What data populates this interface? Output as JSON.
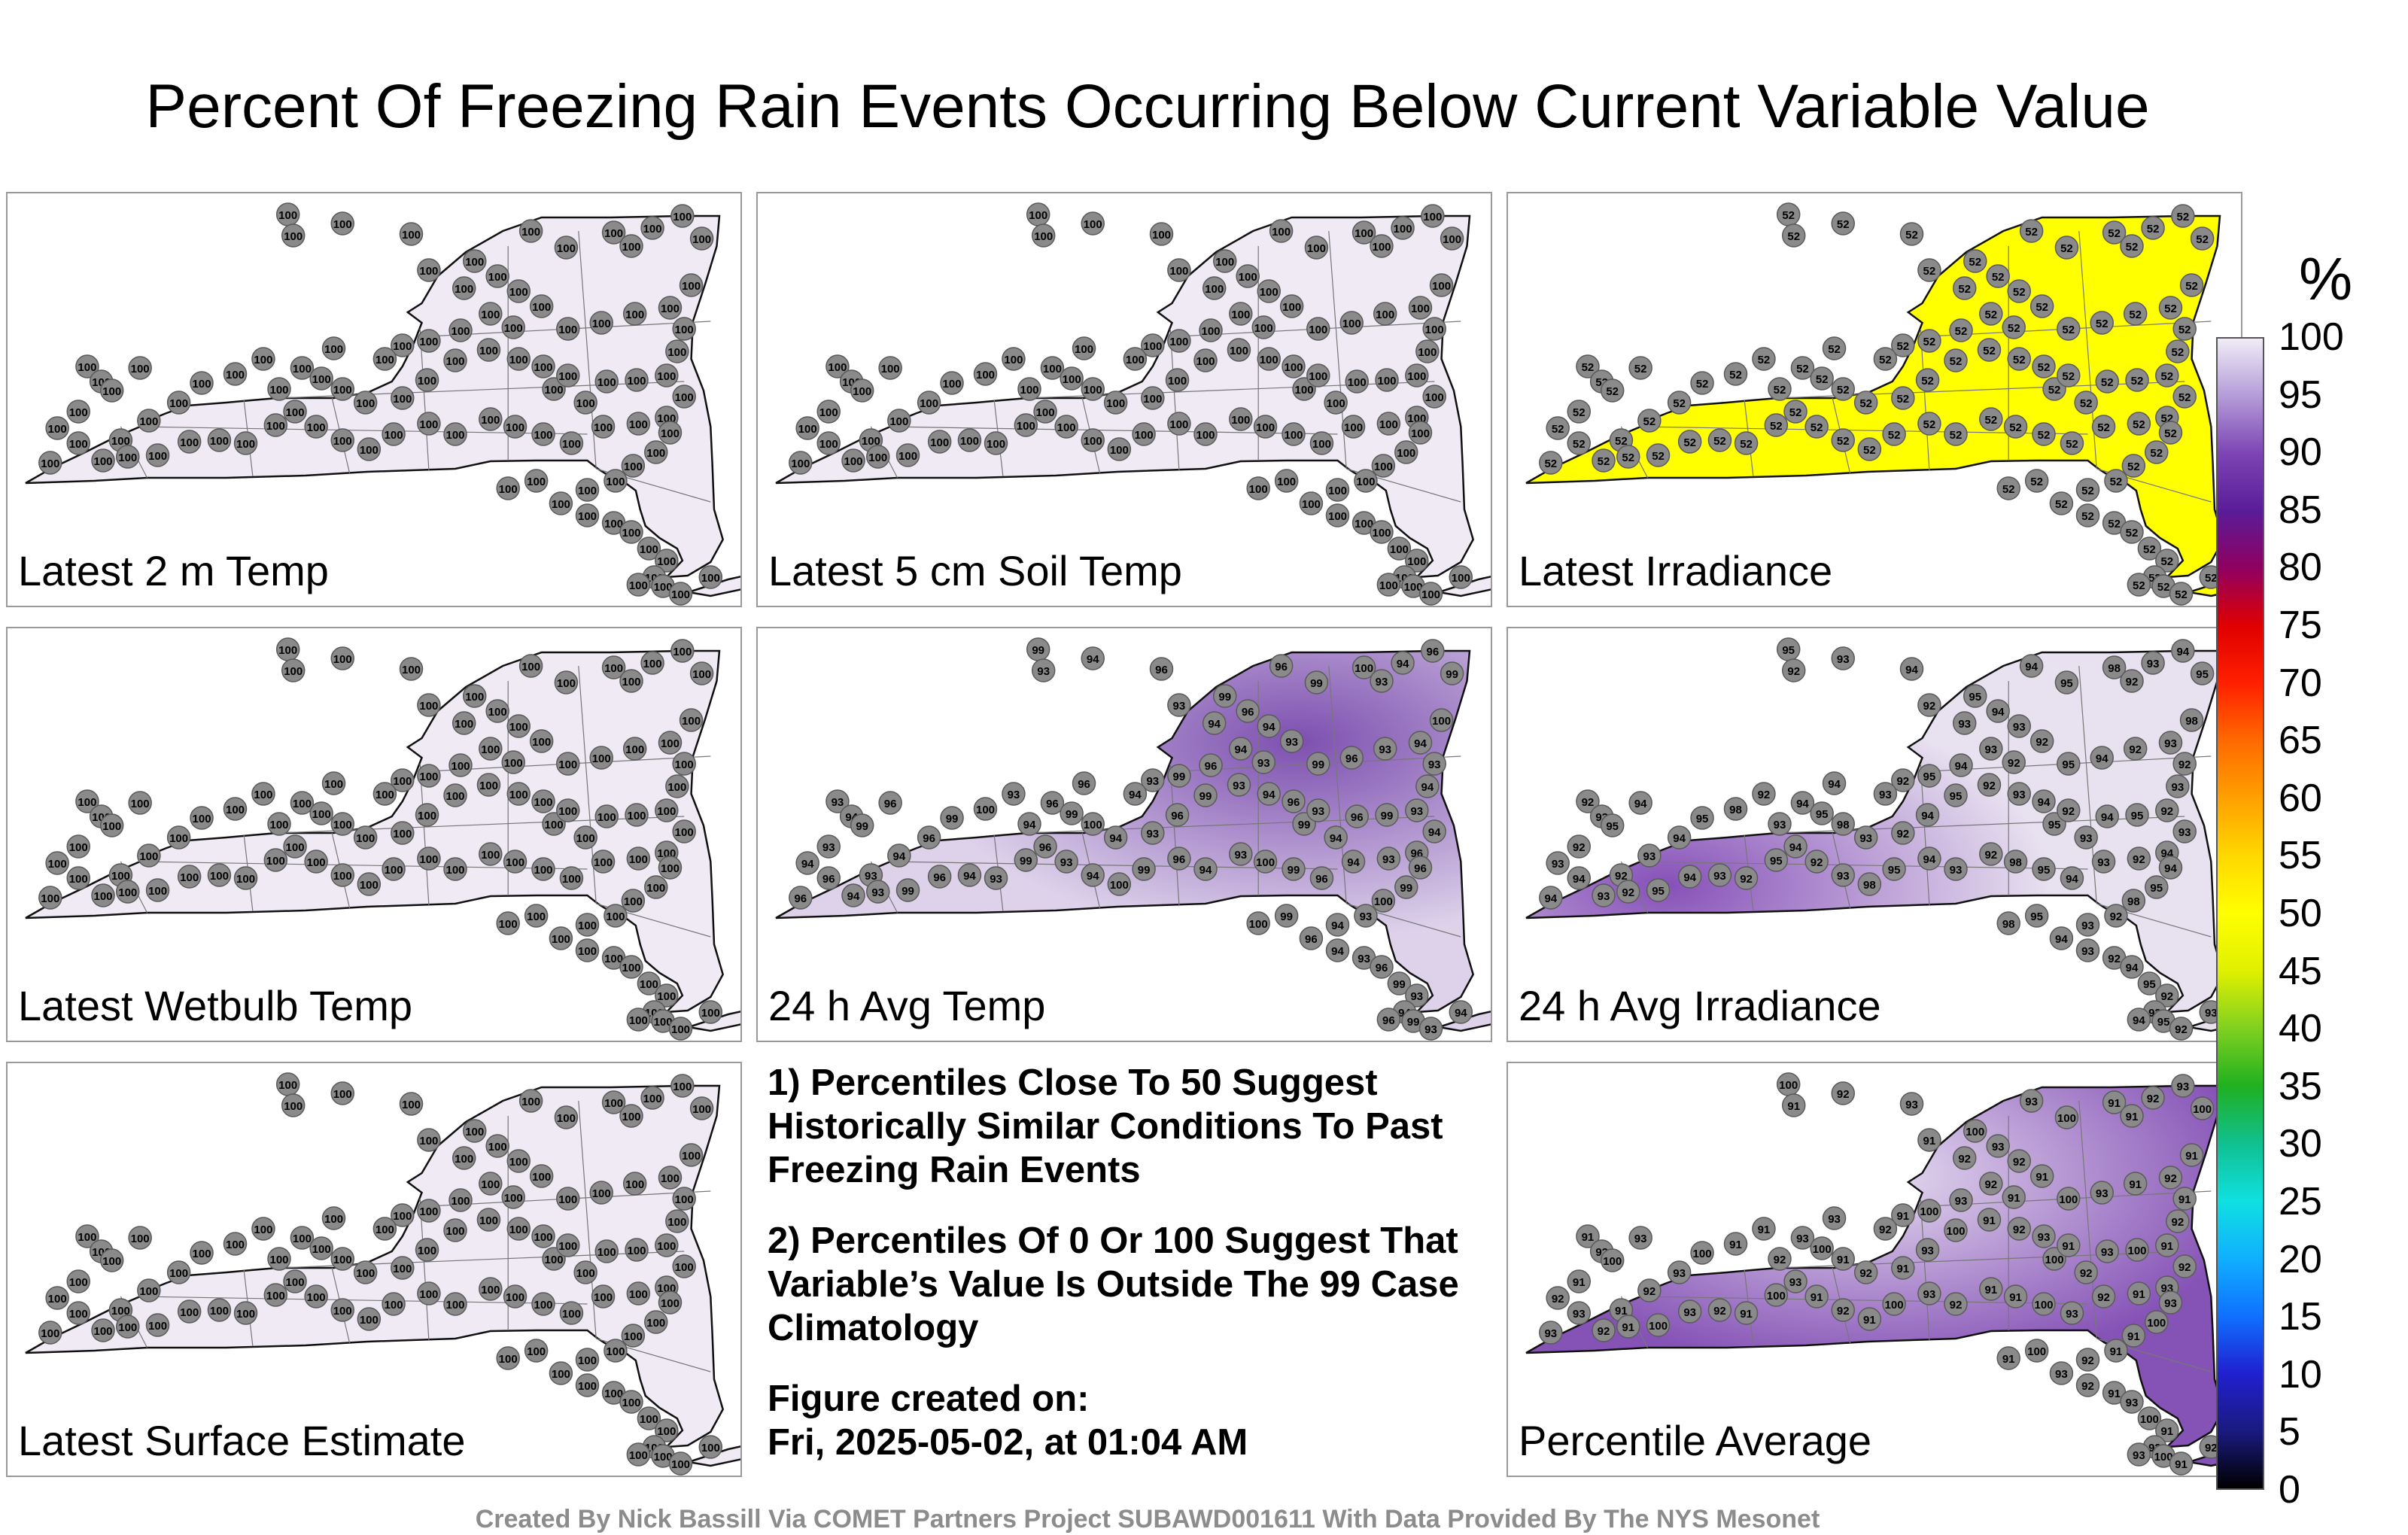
{
  "title": "Percent Of Freezing Rain Events Occurring Below Current Variable Value",
  "panels": [
    {
      "label": "Latest 2 m Temp",
      "fill": "#efeaf4",
      "station_values": [
        "100"
      ]
    },
    {
      "label": "Latest 5 cm Soil Temp",
      "fill": "#efeaf4",
      "station_values": [
        "100"
      ]
    },
    {
      "label": "Latest Irradiance",
      "fill": "#ffff00",
      "station_values": [
        "52"
      ]
    },
    {
      "label": "Latest Wetbulb Temp",
      "fill": "#efeaf4",
      "station_values": [
        "100"
      ]
    },
    {
      "label": "24 h Avg Temp",
      "fill": "#ddd2ea",
      "shade": "#7d4fb0",
      "station_values": [
        "93",
        "94",
        "96",
        "99",
        "100"
      ]
    },
    {
      "label": "24 h Avg Irradiance",
      "fill": "#e8e1f0",
      "shade": "#8650b8",
      "station_values": [
        "92",
        "93",
        "94",
        "95",
        "98",
        "100"
      ]
    },
    {
      "label": "Latest Surface Estimate",
      "fill": "#efeaf4",
      "station_values": [
        "100"
      ]
    },
    {
      "label": "Percentile Average",
      "fill": "#8552b6",
      "shade": "#e6dcf0",
      "station_values": [
        "91",
        "92",
        "93",
        "100"
      ]
    }
  ],
  "notes": {
    "note1": "1) Percentiles Close To 50 Suggest Historically Similar Conditions To Past Freezing Rain Events",
    "note2": "2) Percentiles Of 0 Or 100 Suggest That Variable’s Value Is Outside The 99 Case Climatology",
    "created_label": "Figure created on:",
    "created_date": "Fri, 2025-05-02, at 01:04 AM"
  },
  "credit": "Created By Nick Bassill Via COMET Partners Project SUBAWD001611 With Data Provided By The NYS Mesonet",
  "colorbar": {
    "unit": "%",
    "ticks": [
      "100",
      "95",
      "90",
      "85",
      "80",
      "75",
      "70",
      "65",
      "60",
      "55",
      "50",
      "45",
      "40",
      "35",
      "30",
      "25",
      "20",
      "15",
      "10",
      "5",
      "0"
    ],
    "stops": [
      "#000000",
      "#1a1a80",
      "#2020d0",
      "#1070ff",
      "#10b0ff",
      "#10e0e0",
      "#10c090",
      "#20b020",
      "#80d020",
      "#e0f000",
      "#ffff00",
      "#ffd800",
      "#ffa000",
      "#ff6a00",
      "#ff2000",
      "#e00000",
      "#900060",
      "#5a1c98",
      "#7c44b4",
      "#b49cd8",
      "#f0ecf6"
    ]
  }
}
